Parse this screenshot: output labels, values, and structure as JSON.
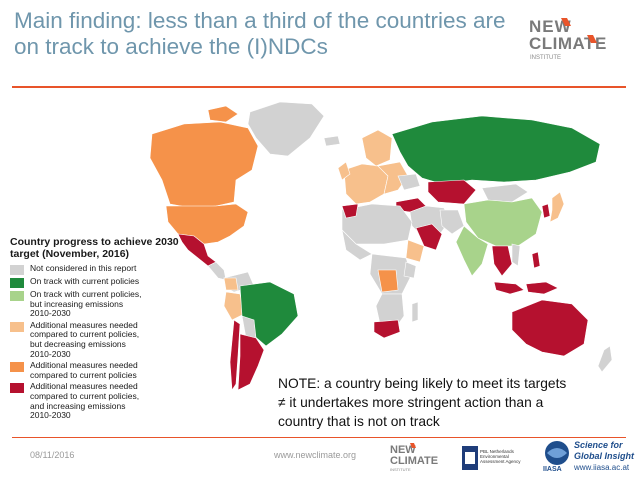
{
  "title": "Main finding: less than a third of the countries are on track to achieve the (I)NDCs",
  "logo": {
    "line1": "NEW",
    "line2": "CLIMATE",
    "line3": "INSTITUTE"
  },
  "legend": {
    "title": "Country progress to achieve 2030 target (November, 2016)",
    "items": [
      {
        "label": "Not considered in this report",
        "color": "#d2d2d2"
      },
      {
        "label": "On track with current policies",
        "color": "#1f8a3c"
      },
      {
        "label": "On track with current policies,\nbut increasing emissions\n2010-2030",
        "color": "#a8d38b"
      },
      {
        "label": "Additional measures needed\ncompared to current policies,\nbut decreasing emissions\n2010-2030",
        "color": "#f7c08c"
      },
      {
        "label": "Additional measures needed\ncompared to current policies",
        "color": "#f5924a"
      },
      {
        "label": "Additional measures needed\ncompared to current policies,\nand increasing emissions\n2010-2030",
        "color": "#b5112f"
      }
    ]
  },
  "note": "NOTE: a country being likely to meet its targets\n≠ it undertakes more stringent action than a\ncountry that is not on track",
  "footer": {
    "date": "08/11/2016",
    "url": "www.newclimate.org",
    "pbl": "PBL Netherlands Environmental Assessment Agency",
    "iiasa_tagline": "Science for\nGlobal Insight",
    "iiasa_url": "www.iiasa.ac.at"
  },
  "colors": {
    "title": "#6f96ac",
    "accent_rule": "#e8542a",
    "water": "#ffffff",
    "not_considered": "#d2d2d2",
    "on_track": "#1f8a3c",
    "on_track_increasing": "#a8d38b",
    "additional_decreasing": "#f7c08c",
    "additional": "#f5924a",
    "additional_increasing": "#b5112f"
  }
}
